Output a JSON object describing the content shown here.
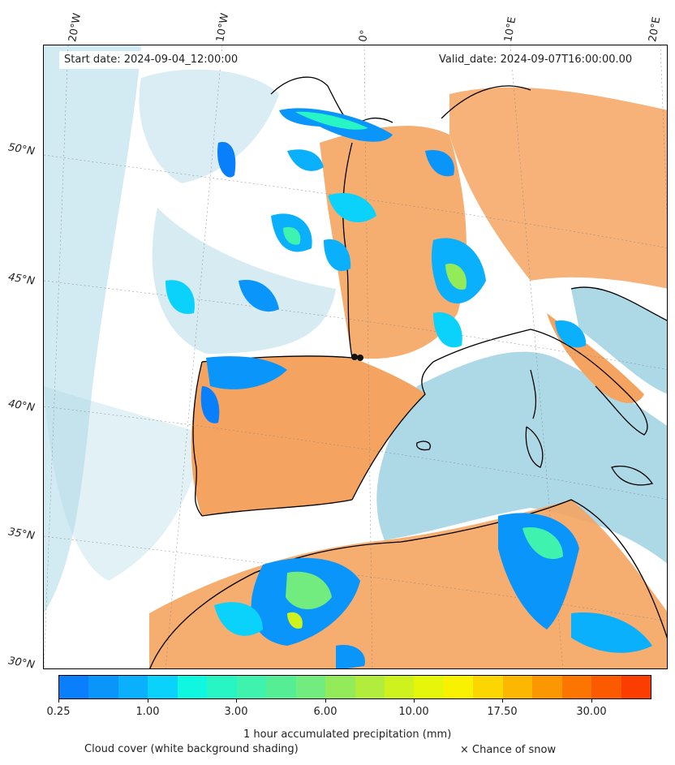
{
  "header": {
    "start_date": "Start date: 2024-09-04_12:00:00",
    "valid_date": "Valid_date: 2024-09-07T16:00:00.00"
  },
  "longitude_labels": [
    "20°W",
    "10°W",
    "0°",
    "10°E",
    "20°E"
  ],
  "latitude_labels": [
    "50°N",
    "45°N",
    "40°N",
    "35°N",
    "30°N"
  ],
  "colorbar": {
    "title": "1 hour accumulated precipitation (mm)",
    "tick_labels": [
      "0.25",
      "1.00",
      "3.00",
      "6.00",
      "10.00",
      "17.50",
      "30.00"
    ],
    "colors": [
      "#0a7ffb",
      "#0a95fb",
      "#0ab0fb",
      "#0ad2fb",
      "#10f7e0",
      "#27f6c4",
      "#3ff2ad",
      "#55ee95",
      "#72ec7e",
      "#93eb5a",
      "#b2ec3c",
      "#cdf21e",
      "#e6f60a",
      "#f8f200",
      "#fcd600",
      "#fcb800",
      "#fb9700",
      "#fb7500",
      "#fb5a00",
      "#fb3d00"
    ],
    "unit_note": ""
  },
  "legend": {
    "cloud_cover": "Cloud cover (white background shading)",
    "snow": "× Chance of snow"
  },
  "colors": {
    "sea": "#add8e6",
    "warm_land": "#f4a460",
    "coastline": "#000000"
  }
}
